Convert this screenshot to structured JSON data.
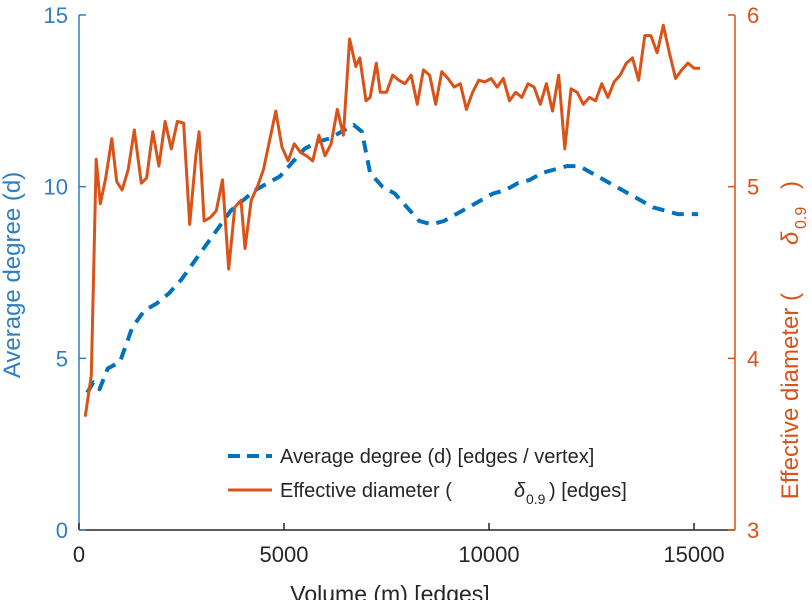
{
  "chart_data": {
    "type": "line",
    "title": "",
    "xlabel": "Volume (m) [edges]",
    "ylabel_left": "Average degree (d)",
    "ylabel_right_prefix": "Effective diameter (",
    "ylabel_right_symbol": "δ",
    "ylabel_right_subscript": "0.9",
    "ylabel_right_suffix": ")",
    "xlim": [
      0,
      16000
    ],
    "ylim_left": [
      0,
      15
    ],
    "ylim_right": [
      3,
      6
    ],
    "x_ticks": [
      0,
      5000,
      10000,
      15000
    ],
    "x_tick_labels": [
      "0",
      "5000",
      "10000",
      "15000"
    ],
    "y_left_ticks": [
      0,
      5,
      10,
      15
    ],
    "y_left_tick_labels": [
      "0",
      "5",
      "10",
      "15"
    ],
    "y_right_ticks": [
      3,
      4,
      5,
      6
    ],
    "y_right_tick_labels": [
      "3",
      "4",
      "5",
      "6"
    ],
    "grid": false,
    "legend": {
      "position": "bottom-right",
      "entries": [
        {
          "label": "Average degree (d) [edges / vertex]"
        },
        {
          "label_prefix": "Effective diameter (",
          "symbol": "δ",
          "subscript": "0.9",
          "label_suffix": ") [edges]"
        }
      ]
    },
    "colors": {
      "left_axis": "#2f7fc1",
      "right_axis": "#d95319",
      "series1": "#0072bd",
      "series2": "#d95319",
      "axis": "#262626"
    },
    "series": [
      {
        "name": "Average degree (d) [edges / vertex]",
        "axis": "left",
        "style": "dashed",
        "x": [
          200,
          350,
          500,
          700,
          1000,
          1300,
          1600,
          1900,
          2200,
          2500,
          2800,
          3100,
          3400,
          3700,
          4000,
          4300,
          4600,
          4900,
          5200,
          5500,
          5800,
          6100,
          6400,
          6700,
          6900,
          7100,
          7400,
          7700,
          8000,
          8300,
          8600,
          8900,
          9200,
          9500,
          9800,
          10100,
          10400,
          10700,
          11000,
          11300,
          11600,
          11900,
          12200,
          12500,
          12800,
          13100,
          13400,
          13700,
          14000,
          14300,
          14600,
          14900,
          15100
        ],
        "y": [
          4.0,
          4.3,
          4.1,
          4.7,
          4.9,
          5.9,
          6.4,
          6.6,
          6.9,
          7.3,
          7.8,
          8.3,
          8.8,
          9.3,
          9.6,
          9.9,
          10.1,
          10.3,
          10.7,
          11.1,
          11.3,
          11.4,
          11.6,
          11.8,
          11.6,
          10.4,
          10.0,
          9.8,
          9.4,
          9.0,
          8.9,
          9.0,
          9.2,
          9.4,
          9.6,
          9.8,
          9.9,
          10.1,
          10.2,
          10.4,
          10.5,
          10.6,
          10.6,
          10.4,
          10.2,
          10.0,
          9.8,
          9.6,
          9.4,
          9.3,
          9.2,
          9.2,
          9.2
        ]
      },
      {
        "name": "Effective diameter (δ0.9) [edges]",
        "axis": "right",
        "style": "solid",
        "x": [
          150,
          300,
          420,
          520,
          650,
          800,
          920,
          1050,
          1200,
          1350,
          1520,
          1650,
          1800,
          1950,
          2100,
          2250,
          2400,
          2550,
          2700,
          2850,
          2930,
          3050,
          3200,
          3350,
          3500,
          3650,
          3800,
          3950,
          4050,
          4200,
          4350,
          4500,
          4650,
          4800,
          4950,
          5100,
          5250,
          5400,
          5550,
          5700,
          5850,
          6000,
          6150,
          6300,
          6450,
          6600,
          6750,
          6850,
          7000,
          7100,
          7250,
          7350,
          7500,
          7650,
          7800,
          7950,
          8100,
          8250,
          8400,
          8550,
          8700,
          8850,
          9000,
          9150,
          9300,
          9450,
          9600,
          9750,
          9900,
          10050,
          10200,
          10350,
          10500,
          10650,
          10800,
          10950,
          11100,
          11250,
          11400,
          11550,
          11700,
          11850,
          12000,
          12150,
          12300,
          12450,
          12600,
          12750,
          12900,
          13050,
          13200,
          13350,
          13500,
          13650,
          13800,
          13950,
          14100,
          14250,
          14400,
          14550,
          14700,
          14850,
          15000,
          15150
        ],
        "y": [
          3.66,
          3.9,
          5.16,
          4.9,
          5.05,
          5.28,
          5.03,
          4.98,
          5.1,
          5.33,
          5.02,
          5.05,
          5.32,
          5.12,
          5.38,
          5.22,
          5.38,
          5.37,
          4.78,
          5.18,
          5.32,
          4.8,
          4.82,
          4.86,
          5.04,
          4.52,
          4.88,
          4.92,
          4.64,
          4.92,
          5.0,
          5.1,
          5.27,
          5.44,
          5.23,
          5.15,
          5.25,
          5.2,
          5.18,
          5.15,
          5.3,
          5.18,
          5.25,
          5.45,
          5.3,
          5.86,
          5.7,
          5.75,
          5.5,
          5.52,
          5.72,
          5.55,
          5.55,
          5.65,
          5.62,
          5.6,
          5.65,
          5.48,
          5.68,
          5.65,
          5.48,
          5.67,
          5.63,
          5.58,
          5.6,
          5.45,
          5.55,
          5.62,
          5.61,
          5.63,
          5.58,
          5.63,
          5.5,
          5.55,
          5.52,
          5.6,
          5.58,
          5.48,
          5.6,
          5.44,
          5.65,
          5.22,
          5.57,
          5.55,
          5.48,
          5.52,
          5.5,
          5.6,
          5.52,
          5.61,
          5.65,
          5.72,
          5.75,
          5.62,
          5.88,
          5.88,
          5.78,
          5.94,
          5.78,
          5.63,
          5.68,
          5.72,
          5.69,
          5.69
        ]
      }
    ]
  }
}
